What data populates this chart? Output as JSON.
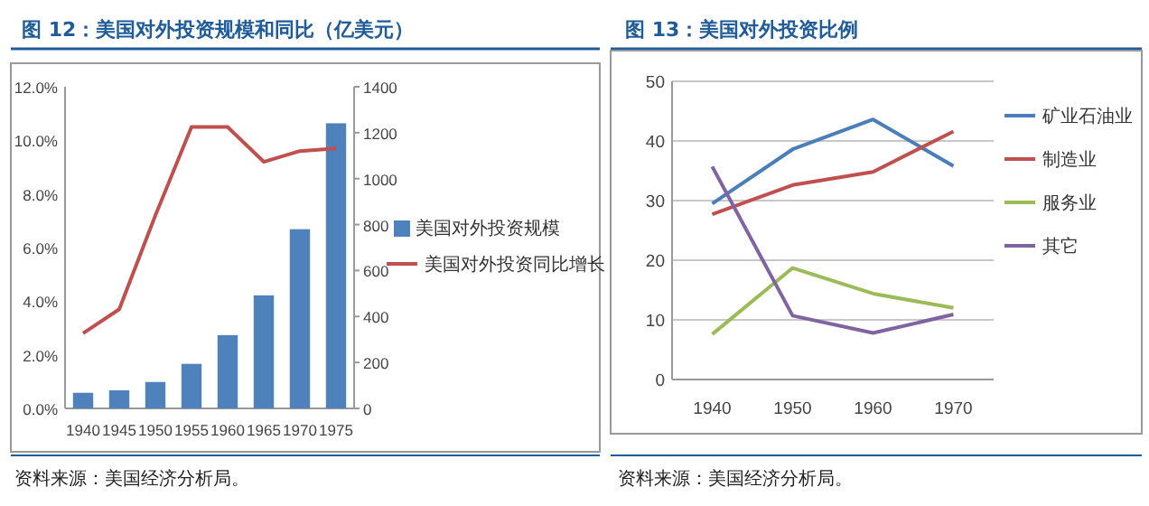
{
  "chart_data": [
    {
      "type": "bar",
      "title": "图 12：美国对外投资规模和同比（亿美元）",
      "categories": [
        "1940",
        "1945",
        "1950",
        "1955",
        "1960",
        "1965",
        "1970",
        "1975"
      ],
      "series": [
        {
          "name": "美国对外投资规模",
          "type": "bar",
          "axis": "y2",
          "color": "#4f81bd",
          "values": [
            68,
            79,
            115,
            194,
            319,
            492,
            780,
            1241
          ]
        },
        {
          "name": "美国对外投资同比增长",
          "type": "line",
          "axis": "y",
          "color": "#c0504d",
          "values": [
            2.8,
            3.7,
            7.2,
            10.5,
            10.5,
            9.2,
            9.6,
            9.7
          ]
        }
      ],
      "ylim": [
        0,
        12
      ],
      "yticks": [
        {
          "value": 0,
          "label": "0.0%"
        },
        {
          "value": 2,
          "label": "2.0%"
        },
        {
          "value": 4,
          "label": "4.0%"
        },
        {
          "value": 6,
          "label": "6.0%"
        },
        {
          "value": 8,
          "label": "8.0%"
        },
        {
          "value": 10,
          "label": "10.0%"
        },
        {
          "value": 12,
          "label": "12.0%"
        }
      ],
      "y2lim": [
        0,
        1400
      ],
      "y2ticks": [
        0,
        200,
        400,
        600,
        800,
        1000,
        1200,
        1400
      ],
      "legend": "right",
      "annotations": [
        "资料来源：美国经济分析局。"
      ]
    },
    {
      "type": "line",
      "title": "图 13：美国对外投资比例",
      "categories": [
        "1940",
        "1950",
        "1960",
        "1970"
      ],
      "series": [
        {
          "name": "矿业石油业",
          "color": "#4a7ebb",
          "values": [
            29.5,
            38.6,
            43.6,
            35.8
          ]
        },
        {
          "name": "制造业",
          "color": "#c0504d",
          "values": [
            27.7,
            32.6,
            34.8,
            41.6
          ]
        },
        {
          "name": "服务业",
          "color": "#9bbb59",
          "values": [
            7.6,
            18.7,
            14.4,
            12.0
          ]
        },
        {
          "name": "其它",
          "color": "#8064a2",
          "values": [
            35.7,
            10.7,
            7.8,
            10.9
          ]
        }
      ],
      "ylim": [
        0,
        50
      ],
      "yticks": [
        0,
        10,
        20,
        30,
        40,
        50
      ],
      "grid": "y",
      "legend": "right",
      "annotations": [
        "资料来源：美国经济分析局。"
      ]
    }
  ]
}
